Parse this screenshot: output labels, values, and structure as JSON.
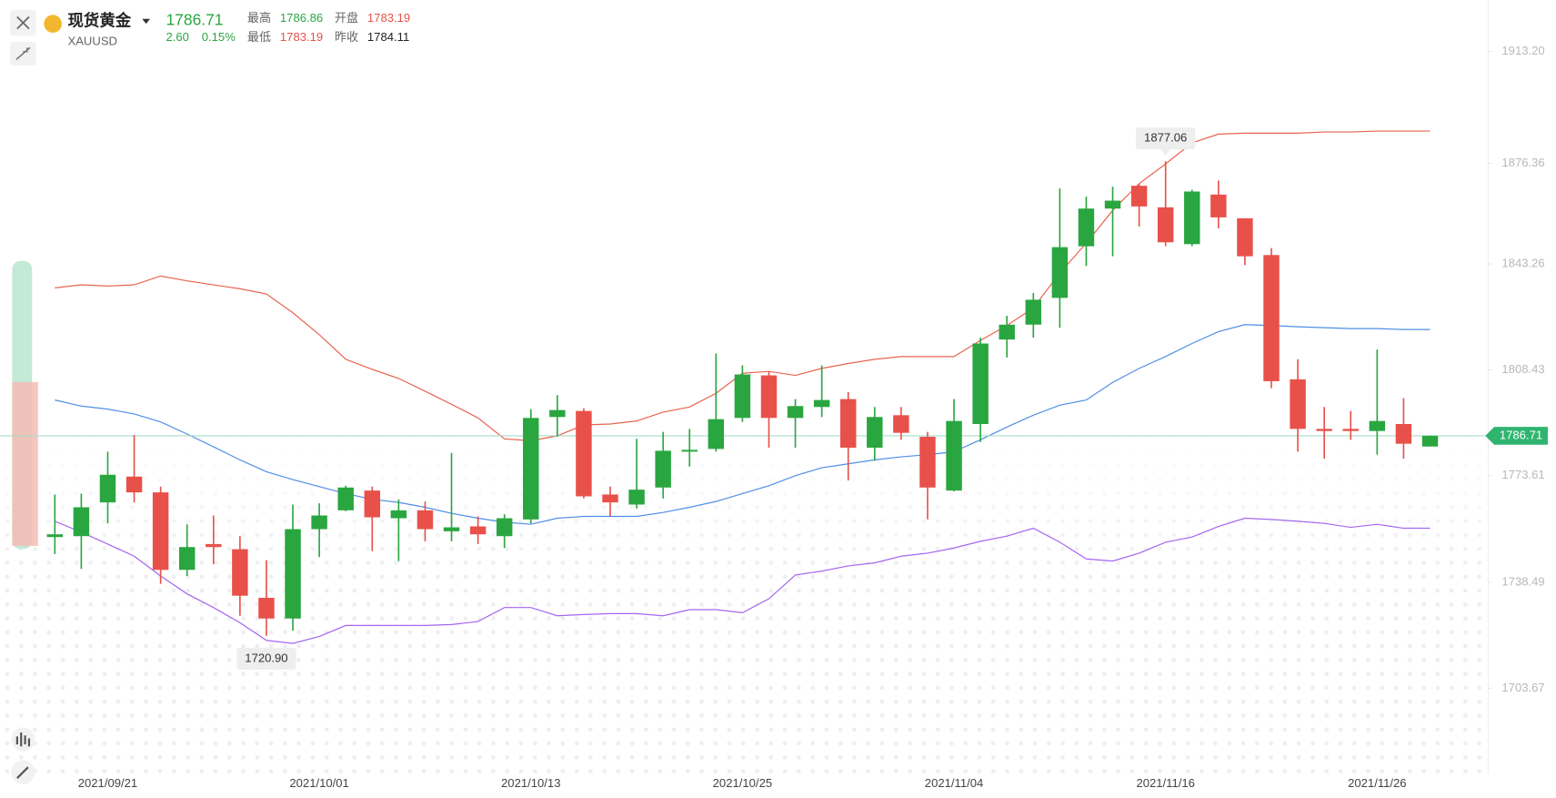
{
  "quote": {
    "name": "现货黄金",
    "price": "1786.71",
    "symbol": "XAUUSD",
    "change": "2.60",
    "change_pct": "0.15%",
    "high_label": "最高",
    "high": "1786.86",
    "open_label": "开盘",
    "open": "1783.19",
    "low_label": "最低",
    "low": "1783.19",
    "prev_close_label": "昨收",
    "prev_close": "1784.11"
  },
  "chart_data": {
    "type": "candlestick",
    "categories": [
      null,
      null,
      "2021/09/21",
      null,
      null,
      null,
      null,
      null,
      null,
      null,
      "2021/10/01",
      null,
      null,
      null,
      null,
      null,
      null,
      null,
      "2021/10/13",
      null,
      null,
      null,
      null,
      null,
      null,
      null,
      "2021/10/25",
      null,
      null,
      null,
      null,
      null,
      null,
      null,
      "2021/11/04",
      null,
      null,
      null,
      null,
      null,
      null,
      null,
      "2021/11/16",
      null,
      null,
      null,
      null,
      null,
      null,
      null,
      "2021/11/26",
      null,
      null
    ],
    "open": [
      1753.4,
      1753.7,
      1764.8,
      1773.3,
      1768.1,
      1742.6,
      1751.1,
      1749.4,
      1733.4,
      1726.6,
      1756.0,
      1762.2,
      1768.7,
      1759.6,
      1762.2,
      1755.3,
      1756.9,
      1753.7,
      1759.2,
      1792.9,
      1794.9,
      1767.4,
      1764.1,
      1769.7,
      1781.5,
      1782.4,
      1792.6,
      1806.6,
      1792.6,
      1796.2,
      1798.8,
      1782.8,
      1793.5,
      1786.4,
      1768.7,
      1790.6,
      1818.4,
      1823.3,
      1832.1,
      1849.1,
      1861.5,
      1869.0,
      1861.9,
      1849.8,
      1866.1,
      1858.3,
      1846.2,
      1805.3,
      1789.0,
      1789.0,
      1788.3,
      1790.6,
      1783.19
    ],
    "high": [
      1767.4,
      1767.7,
      1781.5,
      1787.0,
      1770.0,
      1757.6,
      1760.5,
      1753.7,
      1745.8,
      1764.1,
      1764.5,
      1770.3,
      1770.0,
      1765.8,
      1765.1,
      1781.1,
      1760.2,
      1760.9,
      1795.5,
      1800.1,
      1795.8,
      1770.0,
      1785.7,
      1788.0,
      1789.0,
      1813.8,
      1809.9,
      1807.9,
      1798.8,
      1809.9,
      1801.1,
      1796.2,
      1796.2,
      1788.0,
      1798.8,
      1819.0,
      1826.2,
      1833.7,
      1868.1,
      1865.4,
      1868.7,
      1869.7,
      1877.06,
      1867.7,
      1870.7,
      1858.3,
      1848.5,
      1811.9,
      1796.2,
      1794.9,
      1815.1,
      1799.1,
      1786.86
    ],
    "low": [
      1747.8,
      1742.9,
      1757.9,
      1764.8,
      1738.0,
      1740.6,
      1744.5,
      1727.5,
      1720.9,
      1722.6,
      1746.8,
      1761.9,
      1748.8,
      1745.5,
      1752.0,
      1752.0,
      1751.1,
      1749.8,
      1757.9,
      1786.4,
      1766.1,
      1760.2,
      1762.8,
      1766.1,
      1776.6,
      1781.5,
      1791.3,
      1782.8,
      1782.8,
      1792.9,
      1772.0,
      1778.5,
      1785.4,
      1759.2,
      1768.4,
      1784.7,
      1812.5,
      1819.0,
      1822.3,
      1842.6,
      1845.8,
      1855.6,
      1849.1,
      1849.1,
      1855.0,
      1842.9,
      1802.4,
      1781.5,
      1779.2,
      1785.4,
      1780.5,
      1779.2,
      1783.19
    ],
    "close": [
      1754.3,
      1763.2,
      1773.9,
      1768.1,
      1742.6,
      1750.1,
      1750.1,
      1734.1,
      1726.6,
      1756.0,
      1760.5,
      1769.7,
      1759.9,
      1762.2,
      1756.0,
      1756.6,
      1754.3,
      1759.6,
      1792.6,
      1795.2,
      1766.8,
      1764.8,
      1769.0,
      1781.8,
      1782.1,
      1792.2,
      1806.9,
      1792.6,
      1796.5,
      1798.5,
      1782.8,
      1792.9,
      1787.7,
      1769.7,
      1791.6,
      1817.1,
      1823.3,
      1831.5,
      1848.8,
      1861.5,
      1864.1,
      1862.2,
      1850.4,
      1867.1,
      1858.6,
      1845.8,
      1804.7,
      1789.0,
      1788.3,
      1788.3,
      1791.6,
      1784.11,
      1786.71
    ],
    "up_color": "#2aa640",
    "down_color": "#e8514a",
    "bands": [
      {
        "color": "#e8644f",
        "values": [
          1835.4,
          1836.4,
          1836.0,
          1836.4,
          1839.3,
          1837.7,
          1836.4,
          1835.1,
          1833.4,
          1827.2,
          1820.0,
          1811.9,
          1808.6,
          1805.6,
          1801.4,
          1797.1,
          1792.6,
          1785.7,
          1785.1,
          1786.7,
          1790.3,
          1790.6,
          1791.6,
          1794.5,
          1796.2,
          1800.7,
          1807.3,
          1807.9,
          1806.6,
          1808.9,
          1810.5,
          1811.9,
          1812.8,
          1812.8,
          1812.8,
          1818.1,
          1823.0,
          1828.8,
          1840.3,
          1850.1,
          1860.9,
          1869.7,
          1876.2,
          1883.1,
          1886.0,
          1886.3,
          1886.3,
          1886.3,
          1886.7,
          1886.7,
          1887.0,
          1887.0,
          1887.0
        ]
      },
      {
        "color": "#4f8fe6",
        "values": [
          1798.5,
          1796.5,
          1795.5,
          1793.9,
          1791.3,
          1787.3,
          1783.1,
          1778.8,
          1774.9,
          1772.3,
          1770.0,
          1767.7,
          1765.8,
          1764.8,
          1763.2,
          1761.2,
          1759.6,
          1758.3,
          1757.6,
          1759.6,
          1760.2,
          1760.2,
          1760.2,
          1761.5,
          1763.2,
          1765.1,
          1767.7,
          1770.3,
          1773.6,
          1776.2,
          1777.5,
          1778.8,
          1779.8,
          1780.5,
          1781.5,
          1785.4,
          1789.6,
          1793.5,
          1796.8,
          1798.5,
          1804.3,
          1808.9,
          1812.8,
          1817.1,
          1821.0,
          1823.3,
          1823.0,
          1822.6,
          1822.3,
          1822.0,
          1822.0,
          1821.7,
          1821.7
        ]
      },
      {
        "color": "#a366f0",
        "values": [
          1758.6,
          1755.0,
          1751.1,
          1747.1,
          1740.6,
          1734.7,
          1730.2,
          1725.2,
          1719.4,
          1718.4,
          1720.7,
          1724.3,
          1724.3,
          1724.3,
          1724.3,
          1724.6,
          1725.6,
          1730.2,
          1730.2,
          1727.5,
          1727.9,
          1728.2,
          1728.2,
          1727.5,
          1729.5,
          1729.5,
          1728.5,
          1733.1,
          1740.9,
          1742.2,
          1743.9,
          1744.9,
          1747.1,
          1748.1,
          1749.8,
          1752.0,
          1753.7,
          1756.3,
          1751.7,
          1746.2,
          1745.5,
          1748.1,
          1751.7,
          1753.4,
          1756.9,
          1759.6,
          1759.2,
          1758.6,
          1757.9,
          1756.6,
          1757.6,
          1756.3,
          1756.3
        ]
      }
    ],
    "high_label": "1877.06",
    "low_label": "1720.90",
    "price_color": "#2fb56f",
    "ylim": [
      1677,
      1928.5
    ],
    "yticks": [
      {
        "value": 1913.2,
        "label": "1913.20"
      },
      1876.36,
      1843.26,
      1808.43,
      1773.61,
      1738.49,
      1703.67
    ]
  }
}
